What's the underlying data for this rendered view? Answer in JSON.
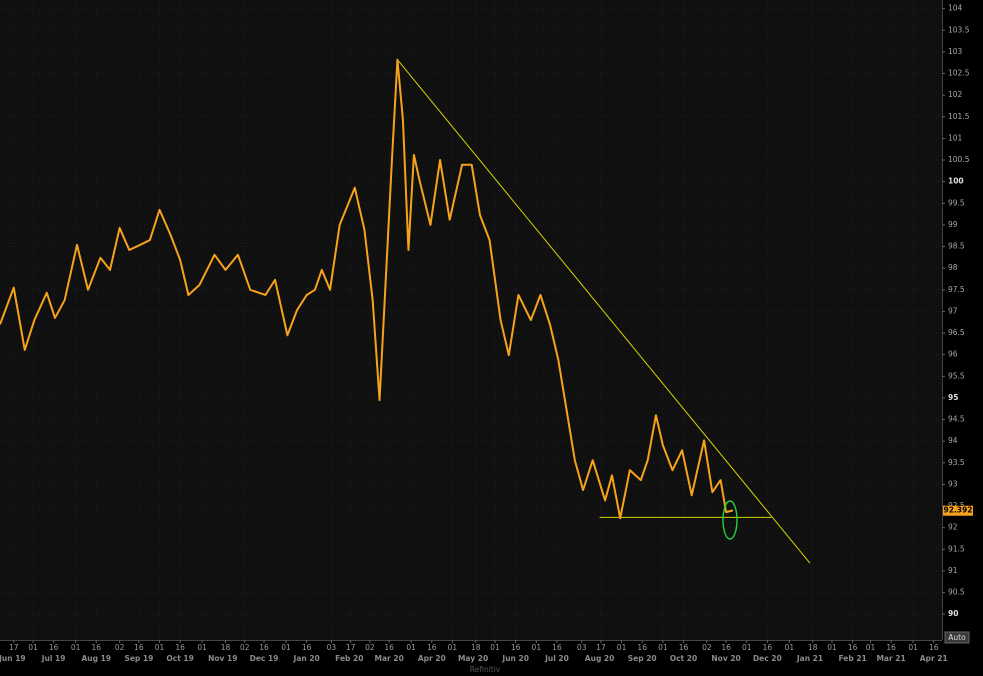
{
  "chart_data": {
    "type": "line",
    "xlim": [
      "2019-06-07",
      "2021-04-22"
    ],
    "ylim": [
      89.45,
      104.2
    ],
    "yticks": [
      90,
      90.5,
      91,
      91.5,
      92,
      92.5,
      93,
      93.5,
      94,
      94.5,
      95,
      95.5,
      96,
      96.5,
      97,
      97.5,
      98,
      98.5,
      99,
      99.5,
      100,
      100.5,
      101,
      101.5,
      102,
      102.5,
      103,
      103.5,
      104
    ],
    "xticks": [
      {
        "value": "2019-06-17",
        "label": "17"
      },
      {
        "value": "2019-07-01",
        "label": "01"
      },
      {
        "value": "2019-07-16",
        "label": "16"
      },
      {
        "value": "2019-08-01",
        "label": "01"
      },
      {
        "value": "2019-08-16",
        "label": "16"
      },
      {
        "value": "2019-09-02",
        "label": "02"
      },
      {
        "value": "2019-09-16",
        "label": "16"
      },
      {
        "value": "2019-10-01",
        "label": "01"
      },
      {
        "value": "2019-10-16",
        "label": "16"
      },
      {
        "value": "2019-11-01",
        "label": "01"
      },
      {
        "value": "2019-11-18",
        "label": "18"
      },
      {
        "value": "2019-12-02",
        "label": "02"
      },
      {
        "value": "2019-12-16",
        "label": "16"
      },
      {
        "value": "2020-01-01",
        "label": "01"
      },
      {
        "value": "2020-01-16",
        "label": "16"
      },
      {
        "value": "2020-02-03",
        "label": "03"
      },
      {
        "value": "2020-02-17",
        "label": "17"
      },
      {
        "value": "2020-03-02",
        "label": "02"
      },
      {
        "value": "2020-03-16",
        "label": "16"
      },
      {
        "value": "2020-04-01",
        "label": "01"
      },
      {
        "value": "2020-04-16",
        "label": "16"
      },
      {
        "value": "2020-05-01",
        "label": "01"
      },
      {
        "value": "2020-05-18",
        "label": "18"
      },
      {
        "value": "2020-06-01",
        "label": "01"
      },
      {
        "value": "2020-06-16",
        "label": "16"
      },
      {
        "value": "2020-07-01",
        "label": "01"
      },
      {
        "value": "2020-07-16",
        "label": "16"
      },
      {
        "value": "2020-08-03",
        "label": "03"
      },
      {
        "value": "2020-08-17",
        "label": "17"
      },
      {
        "value": "2020-09-01",
        "label": "01"
      },
      {
        "value": "2020-09-16",
        "label": "16"
      },
      {
        "value": "2020-10-01",
        "label": "01"
      },
      {
        "value": "2020-10-16",
        "label": "16"
      },
      {
        "value": "2020-11-02",
        "label": "02"
      },
      {
        "value": "2020-11-16",
        "label": "16"
      },
      {
        "value": "2020-12-01",
        "label": "01"
      },
      {
        "value": "2020-12-16",
        "label": "16"
      },
      {
        "value": "2021-01-01",
        "label": "01"
      },
      {
        "value": "2021-01-18",
        "label": "18"
      },
      {
        "value": "2021-02-01",
        "label": "01"
      },
      {
        "value": "2021-02-16",
        "label": "16"
      },
      {
        "value": "2021-03-01",
        "label": "01"
      },
      {
        "value": "2021-03-16",
        "label": "16"
      },
      {
        "value": "2021-04-01",
        "label": "01"
      },
      {
        "value": "2021-04-16",
        "label": "16"
      }
    ],
    "month_ticks": [
      {
        "value": "2019-06-16",
        "label": "Jun 19"
      },
      {
        "value": "2019-07-16",
        "label": "Jul 19"
      },
      {
        "value": "2019-08-16",
        "label": "Aug 19"
      },
      {
        "value": "2019-09-16",
        "label": "Sep 19"
      },
      {
        "value": "2019-10-16",
        "label": "Oct 19"
      },
      {
        "value": "2019-11-16",
        "label": "Nov 19"
      },
      {
        "value": "2019-12-16",
        "label": "Dec 19"
      },
      {
        "value": "2020-01-16",
        "label": "Jan 20"
      },
      {
        "value": "2020-02-16",
        "label": "Feb 20"
      },
      {
        "value": "2020-03-16",
        "label": "Mar 20"
      },
      {
        "value": "2020-04-16",
        "label": "Apr 20"
      },
      {
        "value": "2020-05-16",
        "label": "May 20"
      },
      {
        "value": "2020-06-16",
        "label": "Jun 20"
      },
      {
        "value": "2020-07-16",
        "label": "Jul 20"
      },
      {
        "value": "2020-08-16",
        "label": "Aug 20"
      },
      {
        "value": "2020-09-16",
        "label": "Sep 20"
      },
      {
        "value": "2020-10-16",
        "label": "Oct 20"
      },
      {
        "value": "2020-11-16",
        "label": "Nov 20"
      },
      {
        "value": "2020-12-16",
        "label": "Dec 20"
      },
      {
        "value": "2021-01-16",
        "label": "Jan 21"
      },
      {
        "value": "2021-02-16",
        "label": "Feb 21"
      },
      {
        "value": "2021-03-16",
        "label": "Mar 21"
      },
      {
        "value": "2021-04-16",
        "label": "Apr 21"
      }
    ],
    "x": [
      "2019-06-07",
      "2019-06-17",
      "2019-06-25",
      "2019-07-02",
      "2019-07-11",
      "2019-07-17",
      "2019-07-24",
      "2019-08-02",
      "2019-08-10",
      "2019-08-19",
      "2019-08-26",
      "2019-09-02",
      "2019-09-09",
      "2019-09-17",
      "2019-09-24",
      "2019-10-01",
      "2019-10-09",
      "2019-10-16",
      "2019-10-22",
      "2019-10-30",
      "2019-11-10",
      "2019-11-18",
      "2019-11-27",
      "2019-12-06",
      "2019-12-17",
      "2019-12-24",
      "2020-01-02",
      "2020-01-09",
      "2020-01-16",
      "2020-01-22",
      "2020-01-27",
      "2020-02-02",
      "2020-02-09",
      "2020-02-20",
      "2020-02-27",
      "2020-03-04",
      "2020-03-09",
      "2020-03-15",
      "2020-03-18",
      "2020-03-22",
      "2020-03-26",
      "2020-03-30",
      "2020-04-03",
      "2020-04-07",
      "2020-04-15",
      "2020-04-22",
      "2020-04-29",
      "2020-05-08",
      "2020-05-15",
      "2020-05-21",
      "2020-05-28",
      "2020-06-05",
      "2020-06-11",
      "2020-06-18",
      "2020-06-27",
      "2020-07-04",
      "2020-07-11",
      "2020-07-17",
      "2020-07-23",
      "2020-07-29",
      "2020-08-04",
      "2020-08-11",
      "2020-08-20",
      "2020-08-25",
      "2020-08-31",
      "2020-09-07",
      "2020-09-15",
      "2020-09-20",
      "2020-09-26",
      "2020-10-01",
      "2020-10-08",
      "2020-10-15",
      "2020-10-22",
      "2020-10-31",
      "2020-11-06",
      "2020-11-12",
      "2020-11-16",
      "2020-11-21"
    ],
    "series": [
      {
        "color": "#f7a21b",
        "values": [
          96.7,
          97.55,
          96.11,
          96.8,
          97.43,
          96.85,
          97.26,
          98.54,
          97.5,
          98.24,
          97.96,
          98.93,
          98.42,
          98.54,
          98.65,
          99.35,
          98.77,
          98.19,
          97.38,
          97.61,
          98.31,
          97.96,
          98.31,
          97.5,
          97.38,
          97.73,
          96.45,
          97.03,
          97.38,
          97.5,
          97.96,
          97.5,
          99.0,
          99.86,
          98.89,
          97.26,
          94.95,
          98.65,
          100.5,
          102.82,
          101.43,
          98.42,
          100.62,
          100.04,
          99.0,
          100.5,
          99.12,
          100.39,
          100.39,
          99.23,
          98.65,
          96.8,
          95.99,
          97.38,
          96.8,
          97.38,
          96.69,
          95.88,
          94.72,
          93.56,
          92.87,
          93.56,
          92.63,
          93.21,
          92.22,
          93.33,
          93.1,
          93.56,
          94.6,
          93.91,
          93.33,
          93.79,
          92.75,
          94.02,
          92.82,
          93.1,
          92.36,
          92.4
        ]
      }
    ],
    "last_value": 92.392,
    "trendlines": [
      {
        "color": "#d4d400",
        "x": [
          "2020-03-22",
          "2021-01-16"
        ],
        "values": [
          102.82,
          91.18
        ]
      },
      {
        "color": "#d4d400",
        "x": [
          "2020-08-16",
          "2020-12-19"
        ],
        "values": [
          92.24,
          92.24
        ]
      }
    ]
  },
  "ui": {
    "button": "Auto",
    "watermark": "Refinitiv"
  }
}
